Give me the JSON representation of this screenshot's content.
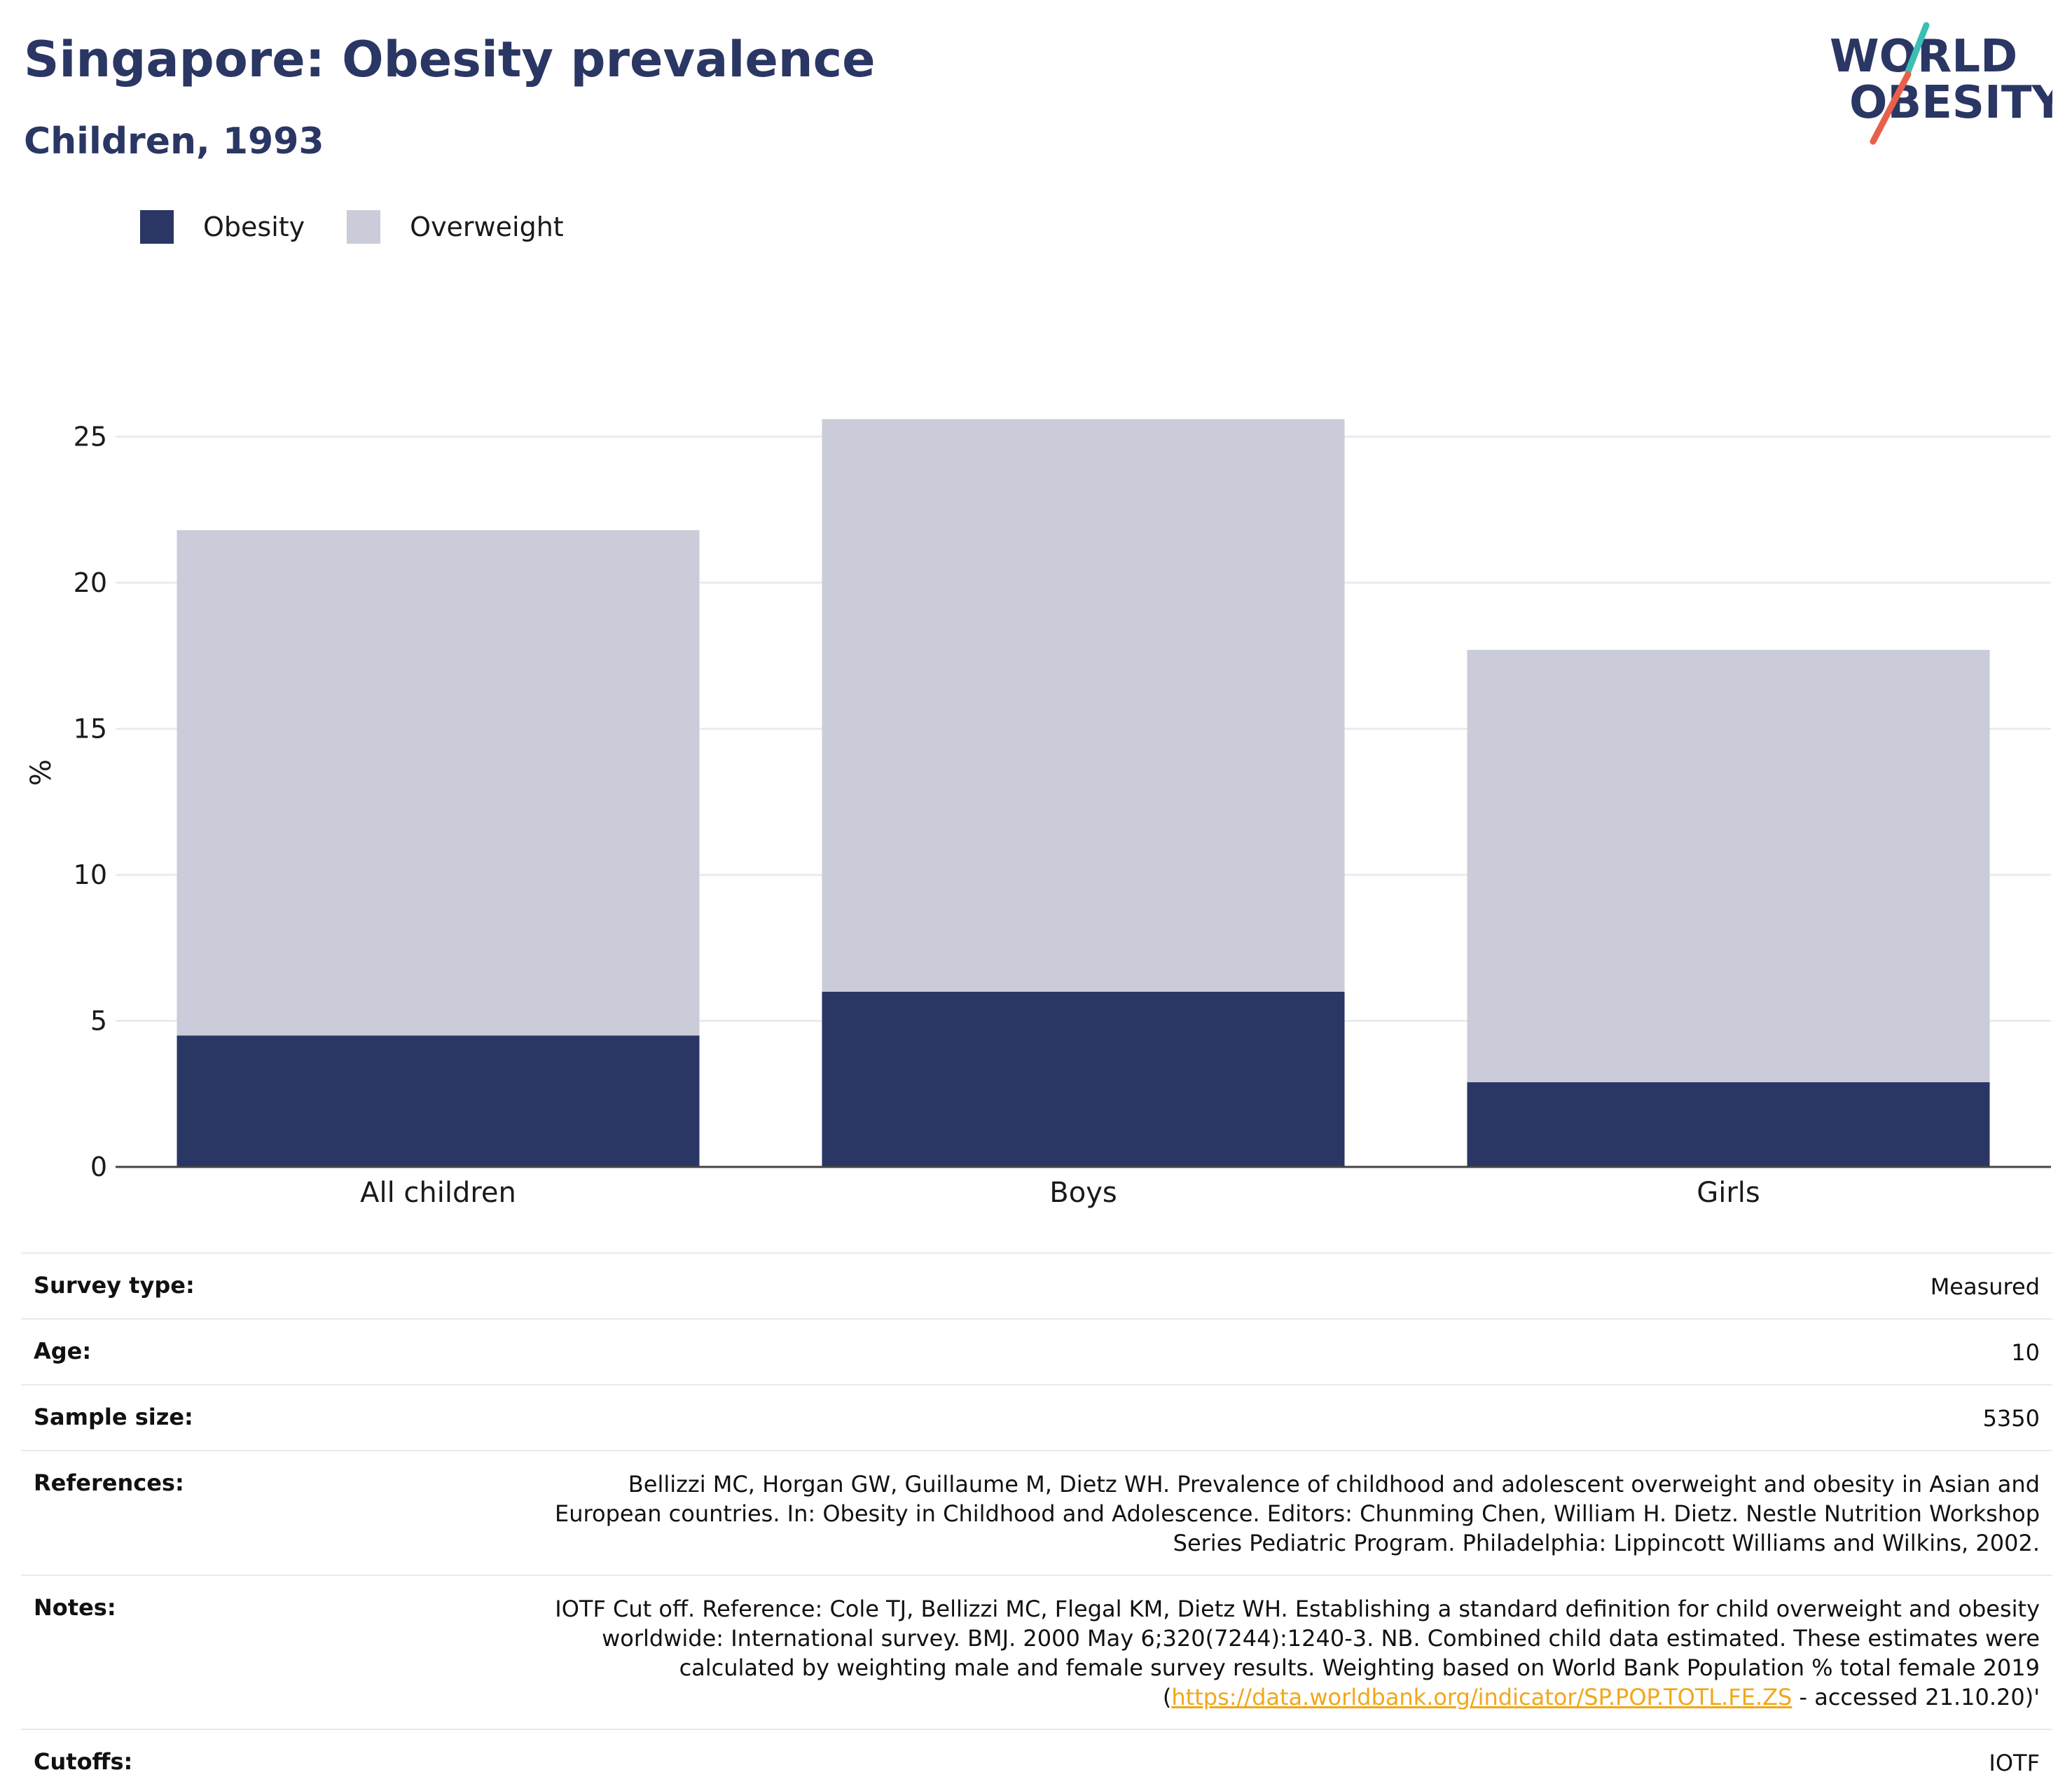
{
  "header": {
    "title": "Singapore: Obesity prevalence",
    "subtitle": "Children, 1993"
  },
  "logo": {
    "line1": "WORLD",
    "line2": "OBESITY",
    "colors": {
      "text": "#2a3663",
      "teal": "#3bbfb5",
      "coral": "#e8604c"
    }
  },
  "legend": [
    {
      "label": "Obesity",
      "color": "#2a3663"
    },
    {
      "label": "Overweight",
      "color": "#cacdd9"
    }
  ],
  "chart_data": {
    "type": "bar",
    "stacked": true,
    "categories": [
      "All children",
      "Boys",
      "Girls"
    ],
    "series": [
      {
        "name": "Obesity",
        "values": [
          4.5,
          6.0,
          2.9
        ],
        "color": "#2a3663"
      },
      {
        "name": "Overweight",
        "values": [
          17.3,
          19.6,
          14.8
        ],
        "color": "#cacdd9"
      }
    ],
    "ylabel": "%",
    "ylim": [
      0,
      27
    ],
    "yticks": [
      0,
      5,
      10,
      15,
      20,
      25
    ],
    "grid": true,
    "legend_position": "top-left"
  },
  "meta": {
    "survey_type": {
      "label": "Survey type:",
      "value": "Measured"
    },
    "age": {
      "label": "Age:",
      "value": "10"
    },
    "sample_size": {
      "label": "Sample size:",
      "value": "5350"
    },
    "references": {
      "label": "References:",
      "value": "Bellizzi MC, Horgan GW, Guillaume M, Dietz WH. Prevalence of childhood and adolescent overweight and obesity in Asian and European countries. In: Obesity in Childhood and Adolescence. Editors: Chunming Chen, William H. Dietz. Nestle Nutrition Workshop Series Pediatric Program. Philadelphia: Lippincott Williams and Wilkins, 2002."
    },
    "notes": {
      "label": "Notes:",
      "text": "IOTF Cut off. Reference: Cole TJ, Bellizzi MC, Flegal KM, Dietz WH. Establishing a standard definition for child overweight and obesity worldwide: International survey. BMJ. 2000 May 6;320(7244):1240-3. NB. Combined child data estimated. These estimates were calculated by weighting male and female survey results. Weighting based on World Bank Population % total female 2019 (",
      "link": "https://data.worldbank.org/indicator/SP.POP.TOTL.FE.ZS",
      "suffix": " - accessed 21.10.20)'"
    },
    "cutoffs": {
      "label": "Cutoffs:",
      "value": "IOTF"
    }
  }
}
